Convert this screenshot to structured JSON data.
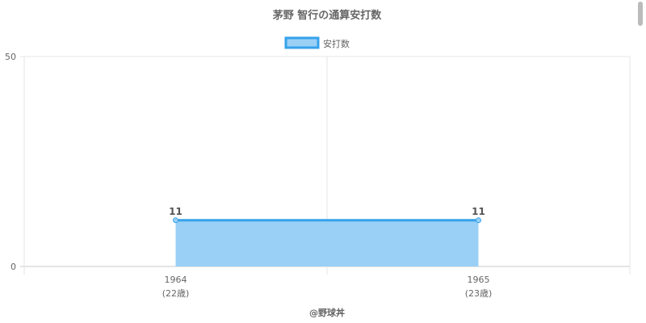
{
  "chart_data": {
    "type": "area",
    "title": "茅野 智行の通算安打数",
    "categories": [
      "1964",
      "1965"
    ],
    "category_sublabels": [
      "(22歳)",
      "(23歳)"
    ],
    "series": [
      {
        "name": "安打数",
        "values": [
          11,
          11
        ],
        "color": "#36a2eb",
        "fill": "#9ad0f5"
      }
    ],
    "ylim": [
      0,
      50
    ],
    "yticks": [
      "0",
      "50"
    ],
    "data_labels": [
      "11",
      "11"
    ],
    "grid": true,
    "legend": "top"
  },
  "credit": "@野球丼"
}
